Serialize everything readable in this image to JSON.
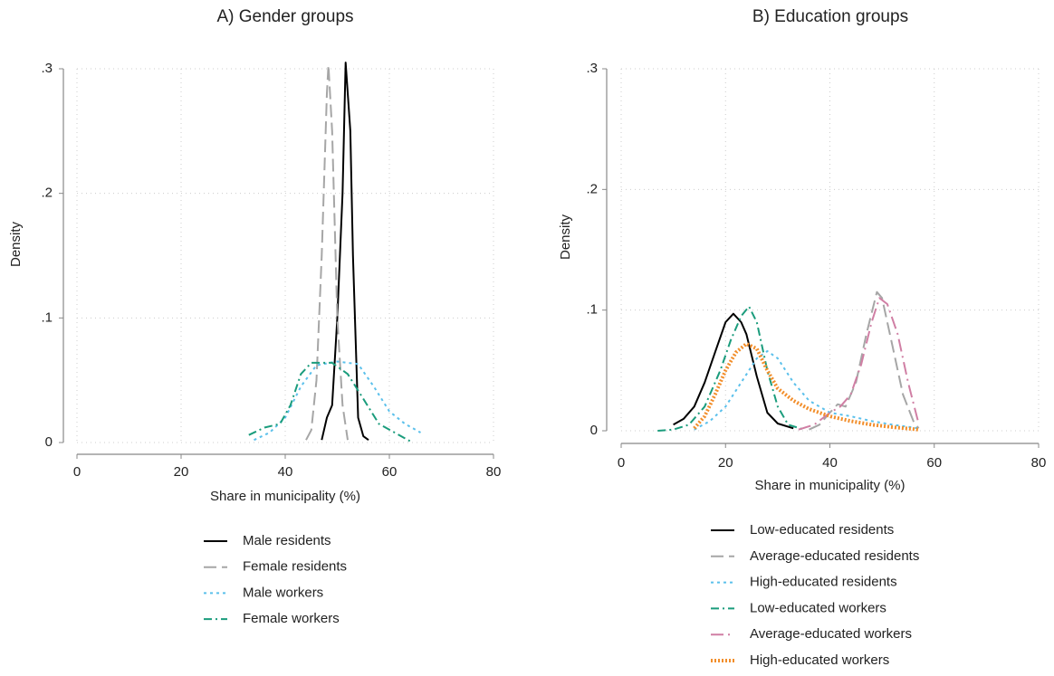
{
  "chart_data": [
    {
      "type": "line",
      "title": "A) Gender groups",
      "xlabel": "Share in municipality (%)",
      "ylabel": "Density",
      "xlim": [
        0,
        80
      ],
      "xticks": [
        0,
        20,
        40,
        60,
        80
      ],
      "ylim": [
        0,
        0.3
      ],
      "yticks": [
        0,
        {
          "value": 0.1,
          "label": ".1"
        },
        {
          "value": 0.2,
          "label": ".2"
        },
        {
          "value": 0.3,
          "label": ".3"
        }
      ],
      "grid": true,
      "series": [
        {
          "name": "Male residents",
          "color": "#000000",
          "x": [
            47,
            48,
            49,
            50,
            51,
            51.6,
            52.5,
            53,
            54,
            55,
            56
          ],
          "values": [
            0.002,
            0.02,
            0.03,
            0.1,
            0.2,
            0.305,
            0.25,
            0.15,
            0.02,
            0.005,
            0.002
          ]
        },
        {
          "name": "Female residents",
          "color": "#a6a6a6",
          "x": [
            44,
            45,
            46,
            47,
            48,
            48.3,
            49,
            50,
            51,
            52
          ],
          "values": [
            0.002,
            0.01,
            0.05,
            0.15,
            0.28,
            0.303,
            0.25,
            0.1,
            0.03,
            0.002
          ]
        },
        {
          "name": "Male workers",
          "color": "#5bc0eb",
          "x": [
            34,
            37,
            40,
            43,
            46,
            50,
            54,
            57,
            60,
            63,
            66
          ],
          "values": [
            0.002,
            0.008,
            0.02,
            0.045,
            0.062,
            0.065,
            0.063,
            0.045,
            0.025,
            0.015,
            0.008
          ]
        },
        {
          "name": "Female workers",
          "color": "#1a9c7c",
          "x": [
            33,
            36,
            39,
            41,
            43,
            45,
            49,
            52,
            55,
            58,
            61,
            64
          ],
          "values": [
            0.006,
            0.012,
            0.015,
            0.03,
            0.055,
            0.064,
            0.064,
            0.055,
            0.035,
            0.015,
            0.008,
            0.001
          ]
        }
      ]
    },
    {
      "type": "line",
      "title": "B) Education groups",
      "xlabel": "Share in municipality (%)",
      "ylabel": "Density",
      "xlim": [
        0,
        80
      ],
      "xticks": [
        0,
        20,
        40,
        60,
        80
      ],
      "ylim": [
        0,
        0.3
      ],
      "yticks": [
        0,
        {
          "value": 0.1,
          "label": ".1"
        },
        {
          "value": 0.2,
          "label": ".2"
        },
        {
          "value": 0.3,
          "label": ".3"
        }
      ],
      "grid": true,
      "series": [
        {
          "name": "Low-educated residents",
          "color": "#000000",
          "x": [
            10,
            12,
            14,
            16,
            18,
            20,
            21.5,
            23,
            24,
            26,
            28,
            30,
            33
          ],
          "values": [
            0.005,
            0.01,
            0.02,
            0.04,
            0.065,
            0.09,
            0.097,
            0.09,
            0.08,
            0.045,
            0.015,
            0.006,
            0.002
          ]
        },
        {
          "name": "Average-educated residents",
          "color": "#a6a6a6",
          "x": [
            36,
            38,
            40,
            41.5,
            43,
            45,
            47,
            49,
            50,
            52,
            54,
            56,
            57
          ],
          "values": [
            0.001,
            0.005,
            0.015,
            0.022,
            0.02,
            0.04,
            0.08,
            0.115,
            0.11,
            0.07,
            0.03,
            0.008,
            0.002
          ]
        },
        {
          "name": "High-educated residents",
          "color": "#5bc0eb",
          "x": [
            14,
            17,
            20,
            23,
            26,
            28,
            30,
            33,
            36,
            40,
            44,
            48,
            52,
            57
          ],
          "values": [
            0.001,
            0.008,
            0.02,
            0.04,
            0.06,
            0.066,
            0.06,
            0.04,
            0.025,
            0.015,
            0.012,
            0.008,
            0.005,
            0.002
          ]
        },
        {
          "name": "Low-educated workers",
          "color": "#1a9c7c",
          "x": [
            7,
            10,
            13,
            16,
            19,
            21,
            23,
            24.5,
            26,
            28,
            30,
            32,
            35
          ],
          "values": [
            0.0,
            0.001,
            0.005,
            0.02,
            0.05,
            0.075,
            0.095,
            0.103,
            0.09,
            0.05,
            0.02,
            0.005,
            0.001
          ]
        },
        {
          "name": "Average-educated workers",
          "color": "#d07fa4",
          "x": [
            34,
            37,
            40,
            42,
            44,
            46,
            48,
            49.5,
            51,
            53,
            55,
            57
          ],
          "values": [
            0.001,
            0.005,
            0.015,
            0.02,
            0.03,
            0.055,
            0.09,
            0.11,
            0.105,
            0.08,
            0.04,
            0.006
          ]
        },
        {
          "name": "High-educated workers",
          "color": "#f28e2b",
          "x": [
            14,
            16,
            18,
            20,
            22,
            24,
            26,
            28,
            30,
            33,
            36,
            40,
            44,
            48,
            52,
            57
          ],
          "values": [
            0.002,
            0.012,
            0.03,
            0.05,
            0.065,
            0.072,
            0.068,
            0.05,
            0.035,
            0.025,
            0.018,
            0.012,
            0.008,
            0.005,
            0.003,
            0.001
          ]
        }
      ]
    }
  ]
}
